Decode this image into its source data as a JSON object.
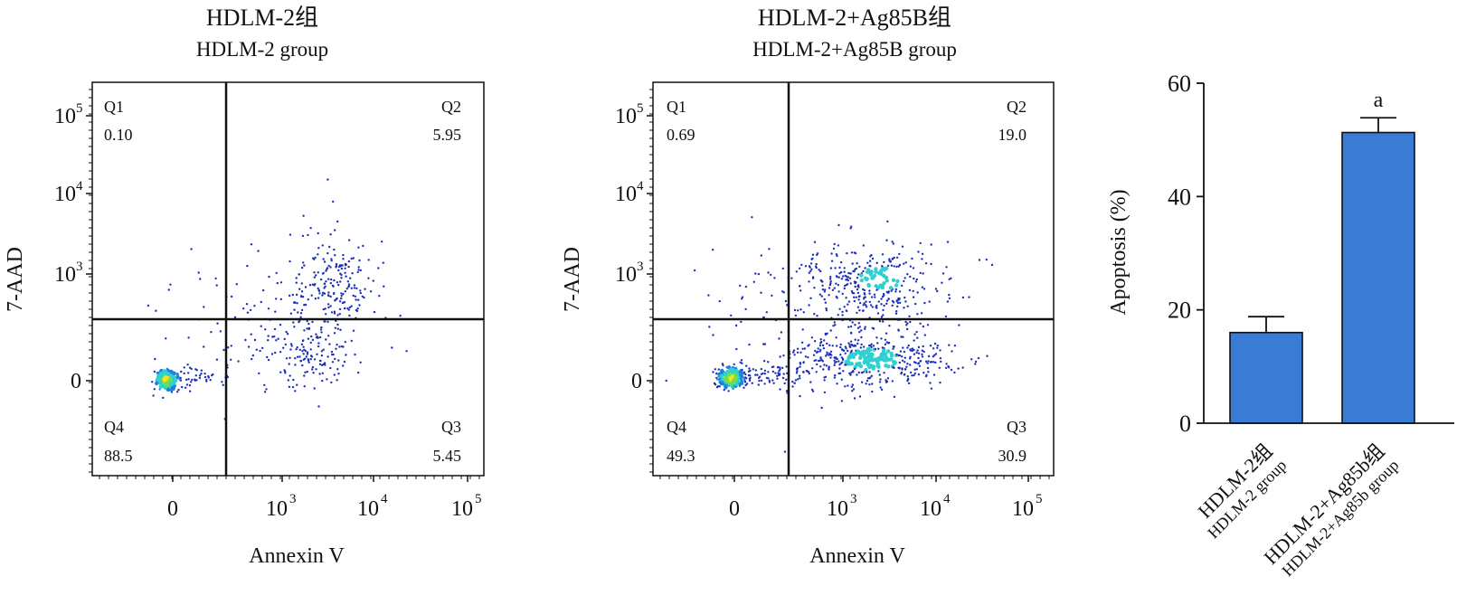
{
  "chart_data": [
    {
      "type": "scatter",
      "title": "HDLM-2组",
      "subtitle": "HDLM-2 group",
      "xlabel": "Annexin V",
      "ylabel": "7-AAD",
      "x_ticks": [
        "0",
        "10",
        "10",
        "10"
      ],
      "x_tick_exponents": [
        "",
        "3",
        "4",
        "5"
      ],
      "y_ticks": [
        "0",
        "10",
        "10",
        "10"
      ],
      "y_tick_exponents": [
        "",
        "3",
        "4",
        "5"
      ],
      "quadrants": [
        {
          "name": "Q1",
          "value": "0.10"
        },
        {
          "name": "Q2",
          "value": "5.95"
        },
        {
          "name": "Q3",
          "value": "5.45"
        },
        {
          "name": "Q4",
          "value": "88.5"
        }
      ]
    },
    {
      "type": "scatter",
      "title": "HDLM-2+Ag85B组",
      "subtitle": "HDLM-2+Ag85B group",
      "xlabel": "Annexin V",
      "ylabel": "7-AAD",
      "x_ticks": [
        "0",
        "10",
        "10",
        "10"
      ],
      "x_tick_exponents": [
        "",
        "3",
        "4",
        "5"
      ],
      "y_ticks": [
        "0",
        "10",
        "10",
        "10"
      ],
      "y_tick_exponents": [
        "",
        "3",
        "4",
        "5"
      ],
      "quadrants": [
        {
          "name": "Q1",
          "value": "0.69"
        },
        {
          "name": "Q2",
          "value": "19.0"
        },
        {
          "name": "Q3",
          "value": "30.9"
        },
        {
          "name": "Q4",
          "value": "49.3"
        }
      ]
    },
    {
      "type": "bar",
      "categories": [
        "HDLM-2组",
        "HDLM-2+Ag85b组"
      ],
      "category_sublabels": [
        "HDLM-2 group",
        "HDLM-2+Ag85b group"
      ],
      "values": [
        16,
        51.3
      ],
      "errors": [
        2.8,
        2.6
      ],
      "annotations": [
        "",
        "a"
      ],
      "ylabel": "Apoptosis (%)",
      "ylim": [
        0,
        60
      ],
      "y_ticks": [
        0,
        20,
        40,
        60
      ],
      "bar_color": "#3a7bd5"
    }
  ]
}
